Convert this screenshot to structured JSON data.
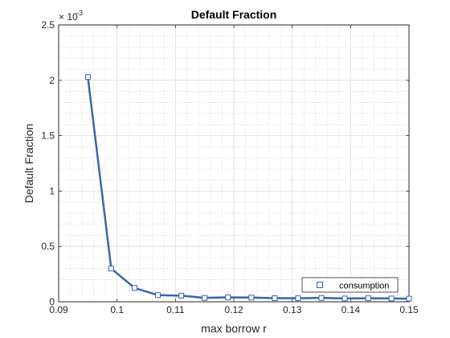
{
  "chart_data": {
    "type": "line",
    "title": "Default Fraction",
    "xlabel": "max borrow r",
    "ylabel": "Default Fraction",
    "y_exponent_base": "× 10",
    "y_exponent_power": "-3",
    "xlim": [
      0.09,
      0.15
    ],
    "ylim": [
      0,
      0.0025
    ],
    "xticks": [
      0.09,
      0.1,
      0.11,
      0.12,
      0.13,
      0.14,
      0.15
    ],
    "xtick_labels": [
      "0.09",
      "0.1",
      "0.11",
      "0.12",
      "0.13",
      "0.14",
      "0.15"
    ],
    "yticks": [
      0,
      0.0005,
      0.001,
      0.0015,
      0.002,
      0.0025
    ],
    "ytick_labels": [
      "0",
      "0.5",
      "1",
      "1.5",
      "2",
      "2.5"
    ],
    "grid": true,
    "minor_grid": true,
    "legend_position": "bottom-right",
    "series": [
      {
        "name": "consumption",
        "color": "#3a65ae",
        "marker": "square",
        "x": [
          0.095,
          0.099,
          0.103,
          0.107,
          0.111,
          0.115,
          0.119,
          0.123,
          0.127,
          0.131,
          0.135,
          0.139,
          0.143,
          0.147,
          0.15
        ],
        "y": [
          0.00203,
          0.0003,
          0.000125,
          6e-05,
          5.5e-05,
          3.5e-05,
          4e-05,
          3.8e-05,
          3.3e-05,
          3.2e-05,
          3.5e-05,
          3e-05,
          3.2e-05,
          3e-05,
          2.8e-05
        ]
      }
    ]
  }
}
